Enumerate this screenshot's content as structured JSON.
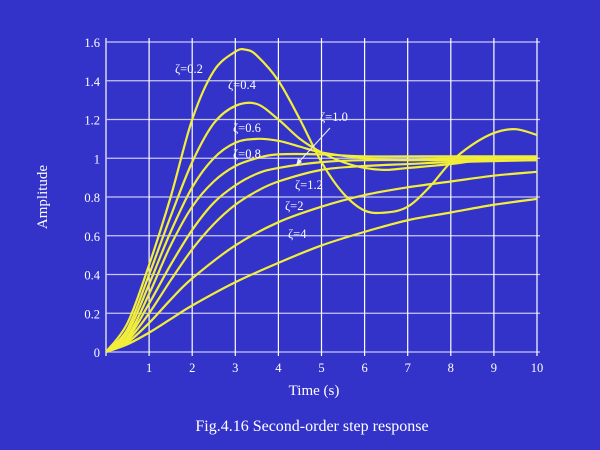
{
  "chart_data": {
    "type": "line",
    "title": "",
    "caption": "Fig.4.16 Second-order step response",
    "xlabel": "Time (s)",
    "ylabel": "Amplitude",
    "xlim": [
      0,
      10
    ],
    "ylim": [
      0,
      1.6
    ],
    "xticks": [
      1,
      2,
      3,
      4,
      5,
      6,
      7,
      8,
      9,
      10
    ],
    "xtick_labels": [
      "1",
      "2",
      "3",
      "4",
      "5",
      "6",
      "7",
      "8",
      "9",
      "10"
    ],
    "yticks": [
      0,
      0.2,
      0.4,
      0.6,
      0.8,
      1,
      1.2,
      1.4,
      1.6
    ],
    "ytick_labels": [
      "0",
      "0.2",
      "0.4",
      "0.6",
      "0.8",
      "1",
      "1.2",
      "1.4",
      "1.6"
    ],
    "grid": true,
    "colors": {
      "background": "#3333c9",
      "grid": "#ffffff",
      "line": "#f2ee3a",
      "text": "#ffffff"
    },
    "series": [
      {
        "name": "ζ=0.2",
        "x": [
          0,
          0.5,
          1,
          1.5,
          2,
          2.5,
          3,
          3.25,
          3.5,
          4,
          4.5,
          5,
          5.5,
          6,
          6.5,
          7,
          7.5,
          8,
          8.5,
          9,
          9.5,
          10
        ],
        "y": [
          0,
          0.15,
          0.45,
          0.8,
          1.2,
          1.45,
          1.55,
          1.56,
          1.53,
          1.4,
          1.2,
          0.98,
          0.82,
          0.73,
          0.72,
          0.75,
          0.85,
          0.98,
          1.07,
          1.13,
          1.15,
          1.12
        ]
      },
      {
        "name": "ζ=0.4",
        "x": [
          0,
          0.5,
          1,
          1.5,
          2,
          2.5,
          3,
          3.5,
          4,
          4.5,
          5,
          5.5,
          6,
          6.5,
          7,
          8,
          9,
          10
        ],
        "y": [
          0,
          0.12,
          0.4,
          0.7,
          0.98,
          1.18,
          1.27,
          1.28,
          1.2,
          1.1,
          1.03,
          0.98,
          0.95,
          0.94,
          0.95,
          0.97,
          1.0,
          1.0
        ]
      },
      {
        "name": "ζ=0.6",
        "x": [
          0,
          0.5,
          1,
          1.5,
          2,
          2.5,
          3,
          3.5,
          4,
          4.5,
          5,
          6,
          7,
          8,
          10
        ],
        "y": [
          0,
          0.1,
          0.35,
          0.62,
          0.85,
          1.0,
          1.08,
          1.1,
          1.09,
          1.06,
          1.03,
          1.0,
          0.99,
          1.0,
          1.0
        ]
      },
      {
        "name": "ζ=0.8",
        "x": [
          0,
          0.5,
          1,
          1.5,
          2,
          2.5,
          3,
          3.5,
          4,
          5,
          6,
          8,
          10
        ],
        "y": [
          0,
          0.08,
          0.3,
          0.55,
          0.75,
          0.88,
          0.96,
          1.0,
          1.02,
          1.02,
          1.01,
          1.01,
          1.01
        ]
      },
      {
        "name": "ζ=1.0",
        "x": [
          0,
          0.5,
          1,
          1.5,
          2,
          2.5,
          3,
          3.5,
          4,
          5,
          6,
          8,
          10
        ],
        "y": [
          0,
          0.07,
          0.25,
          0.45,
          0.63,
          0.77,
          0.86,
          0.92,
          0.95,
          0.98,
          0.99,
          0.99,
          0.99
        ]
      },
      {
        "name": "ζ=1.2",
        "x": [
          0,
          0.5,
          1,
          1.5,
          2,
          2.5,
          3,
          3.5,
          4,
          5,
          6,
          7,
          8,
          10
        ],
        "y": [
          0,
          0.06,
          0.2,
          0.37,
          0.53,
          0.66,
          0.76,
          0.83,
          0.88,
          0.94,
          0.96,
          0.97,
          0.98,
          0.99
        ]
      },
      {
        "name": "ζ=2",
        "x": [
          0,
          0.5,
          1,
          1.5,
          2,
          3,
          4,
          5,
          6,
          7,
          8,
          9,
          10
        ],
        "y": [
          0,
          0.05,
          0.15,
          0.27,
          0.38,
          0.55,
          0.67,
          0.75,
          0.81,
          0.85,
          0.88,
          0.91,
          0.93
        ]
      },
      {
        "name": "ζ=4",
        "x": [
          0,
          0.5,
          1,
          1.5,
          2,
          3,
          4,
          5,
          6,
          7,
          8,
          9,
          10
        ],
        "y": [
          0,
          0.04,
          0.1,
          0.17,
          0.24,
          0.36,
          0.46,
          0.55,
          0.62,
          0.68,
          0.72,
          0.76,
          0.79
        ]
      }
    ],
    "annotations": [
      "ζ=0.2",
      "ζ=0.4",
      "ζ=0.6",
      "ζ=0.8",
      "ζ=1.0",
      "ζ=1.2",
      "ζ=2",
      "ζ=4"
    ]
  }
}
